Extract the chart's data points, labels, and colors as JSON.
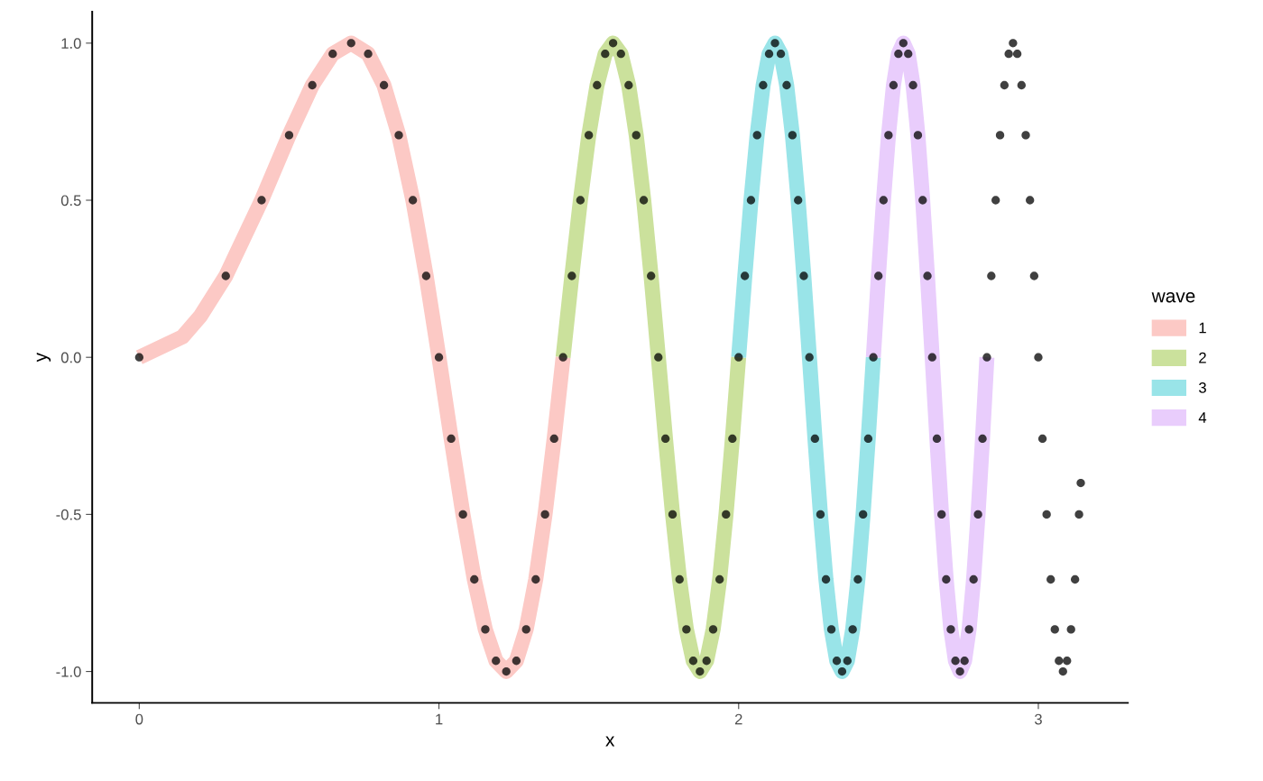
{
  "chart_data": {
    "type": "line",
    "xlabel": "x",
    "ylabel": "y",
    "legend_title": "wave",
    "legend": "right",
    "grid": false,
    "xlim": [
      -0.157,
      3.2987
    ],
    "xticks": [
      0,
      1,
      2,
      3
    ],
    "ylim": [
      -1.1,
      1.1
    ],
    "yticks": [
      {
        "value": -1,
        "label": "-1.0"
      },
      {
        "value": -0.5,
        "label": "-0.5"
      },
      {
        "value": 0,
        "label": "0.0"
      },
      {
        "value": 0.5,
        "label": "0.5"
      },
      {
        "value": 1,
        "label": "1.0"
      }
    ],
    "series": [
      {
        "name": "1",
        "color": "#fcc9c5",
        "x": [
          0,
          0.1443,
          0.2041,
          0.2887,
          0.4082,
          0.5,
          0.5774,
          0.6455,
          0.7071,
          0.7638,
          0.8165,
          0.866,
          0.9129,
          0.9574,
          1.0,
          1.0408,
          1.0801,
          1.118,
          1.1547,
          1.1902,
          1.2247,
          1.2583,
          1.291,
          1.3229,
          1.354,
          1.3844,
          1.4142
        ],
        "values": [
          0,
          0.065,
          0.131,
          0.259,
          0.5,
          0.707,
          0.866,
          0.966,
          1,
          0.966,
          0.866,
          0.707,
          0.5,
          0.259,
          0,
          -0.259,
          -0.5,
          -0.707,
          -0.866,
          -0.966,
          -1,
          -0.966,
          -0.866,
          -0.707,
          -0.5,
          -0.259,
          0
        ]
      },
      {
        "name": "2",
        "color": "#cbe19c",
        "x": [
          1.4142,
          1.4434,
          1.472,
          1.5,
          1.5275,
          1.5546,
          1.5811,
          1.6073,
          1.633,
          1.6583,
          1.6833,
          1.7078,
          1.7321,
          1.7559,
          1.7795,
          1.8028,
          1.8257,
          1.8484,
          1.8708,
          1.893,
          1.9149,
          1.9365,
          1.9579,
          1.9791,
          2.0
        ],
        "values": [
          0,
          0.259,
          0.5,
          0.707,
          0.866,
          0.966,
          1,
          0.966,
          0.866,
          0.707,
          0.5,
          0.259,
          0,
          -0.259,
          -0.5,
          -0.707,
          -0.866,
          -0.966,
          -1,
          -0.966,
          -0.866,
          -0.707,
          -0.5,
          -0.259,
          0
        ]
      },
      {
        "name": "3",
        "color": "#99e4e8",
        "x": [
          2.0,
          2.0207,
          2.0412,
          2.0616,
          2.0817,
          2.1016,
          2.1213,
          2.1409,
          2.1602,
          2.1794,
          2.1985,
          2.2174,
          2.2361,
          2.2546,
          2.273,
          2.2913,
          2.3094,
          2.3274,
          2.3452,
          2.3629,
          2.3805,
          2.3979,
          2.4152,
          2.4324,
          2.4495
        ],
        "values": [
          0,
          0.259,
          0.5,
          0.707,
          0.866,
          0.966,
          1,
          0.966,
          0.866,
          0.707,
          0.5,
          0.259,
          0,
          -0.259,
          -0.5,
          -0.707,
          -0.866,
          -0.966,
          -1,
          -0.966,
          -0.866,
          -0.707,
          -0.5,
          -0.259,
          0
        ]
      },
      {
        "name": "4",
        "color": "#e9cdfc",
        "x": [
          2.4495,
          2.4664,
          2.4833,
          2.5,
          2.5166,
          2.5331,
          2.5495,
          2.5658,
          2.582,
          2.5981,
          2.6141,
          2.63,
          2.6458,
          2.6615,
          2.6771,
          2.6926,
          2.708,
          2.7234,
          2.7386,
          2.7538,
          2.7689,
          2.7839,
          2.7988,
          2.8137,
          2.8284
        ],
        "values": [
          0,
          0.259,
          0.5,
          0.707,
          0.866,
          0.966,
          1,
          0.966,
          0.866,
          0.707,
          0.5,
          0.259,
          0,
          -0.259,
          -0.5,
          -0.707,
          -0.866,
          -0.966,
          -1,
          -0.966,
          -0.866,
          -0.707,
          -0.5,
          -0.259,
          0
        ]
      },
      {
        "type": "scatter",
        "color": "#000000",
        "marker": "circle",
        "x": [
          0,
          0.2887,
          0.4082,
          0.5,
          0.5774,
          0.6455,
          0.7071,
          0.7638,
          0.8165,
          0.866,
          0.9129,
          0.9574,
          1.0,
          1.0408,
          1.0801,
          1.118,
          1.1547,
          1.1902,
          1.2247,
          1.2583,
          1.291,
          1.3229,
          1.354,
          1.3844,
          1.4142,
          1.4434,
          1.472,
          1.5,
          1.5275,
          1.5546,
          1.5811,
          1.6073,
          1.633,
          1.6583,
          1.6833,
          1.7078,
          1.7321,
          1.7559,
          1.7795,
          1.8028,
          1.8257,
          1.8484,
          1.8708,
          1.893,
          1.9149,
          1.9365,
          1.9579,
          1.9791,
          2.0,
          2.0207,
          2.0412,
          2.0616,
          2.0817,
          2.1016,
          2.1213,
          2.1409,
          2.1602,
          2.1794,
          2.1985,
          2.2174,
          2.2361,
          2.2546,
          2.273,
          2.2913,
          2.3094,
          2.3274,
          2.3452,
          2.3629,
          2.3805,
          2.3979,
          2.4152,
          2.4324,
          2.4495,
          2.4664,
          2.4833,
          2.5,
          2.5166,
          2.5331,
          2.5495,
          2.5658,
          2.582,
          2.5981,
          2.6141,
          2.63,
          2.6458,
          2.6615,
          2.6771,
          2.6926,
          2.708,
          2.7234,
          2.7386,
          2.7538,
          2.7689,
          2.7839,
          2.7988,
          2.8137,
          2.8284,
          2.8431,
          2.8577,
          2.8723,
          2.8868,
          2.9012,
          2.9155,
          2.9297,
          2.9439,
          2.958,
          2.9721,
          2.9861,
          3.0,
          3.0139,
          3.0277,
          3.0414,
          3.0551,
          3.0687,
          3.0822,
          3.0957,
          3.1091,
          3.1225,
          3.1358,
          3.1416
        ],
        "values": [
          0,
          0.259,
          0.5,
          0.707,
          0.866,
          0.966,
          1,
          0.966,
          0.866,
          0.707,
          0.5,
          0.259,
          0,
          -0.259,
          -0.5,
          -0.707,
          -0.866,
          -0.966,
          -1,
          -0.966,
          -0.866,
          -0.707,
          -0.5,
          -0.259,
          0,
          0.259,
          0.5,
          0.707,
          0.866,
          0.966,
          1,
          0.966,
          0.866,
          0.707,
          0.5,
          0.259,
          0,
          -0.259,
          -0.5,
          -0.707,
          -0.866,
          -0.966,
          -1,
          -0.966,
          -0.866,
          -0.707,
          -0.5,
          -0.259,
          0,
          0.259,
          0.5,
          0.707,
          0.866,
          0.966,
          1,
          0.966,
          0.866,
          0.707,
          0.5,
          0.259,
          0,
          -0.259,
          -0.5,
          -0.707,
          -0.866,
          -0.966,
          -1,
          -0.966,
          -0.866,
          -0.707,
          -0.5,
          -0.259,
          0,
          0.259,
          0.5,
          0.707,
          0.866,
          0.966,
          1,
          0.966,
          0.866,
          0.707,
          0.5,
          0.259,
          0,
          -0.259,
          -0.5,
          -0.707,
          -0.866,
          -0.966,
          -1,
          -0.966,
          -0.866,
          -0.707,
          -0.5,
          -0.259,
          0,
          0.259,
          0.5,
          0.707,
          0.866,
          0.966,
          1,
          0.966,
          0.866,
          0.707,
          0.5,
          0.259,
          0,
          -0.259,
          -0.5,
          -0.707,
          -0.866,
          -0.966,
          -1,
          -0.966,
          -0.866,
          -0.707,
          -0.5,
          -0.4
        ]
      }
    ]
  }
}
